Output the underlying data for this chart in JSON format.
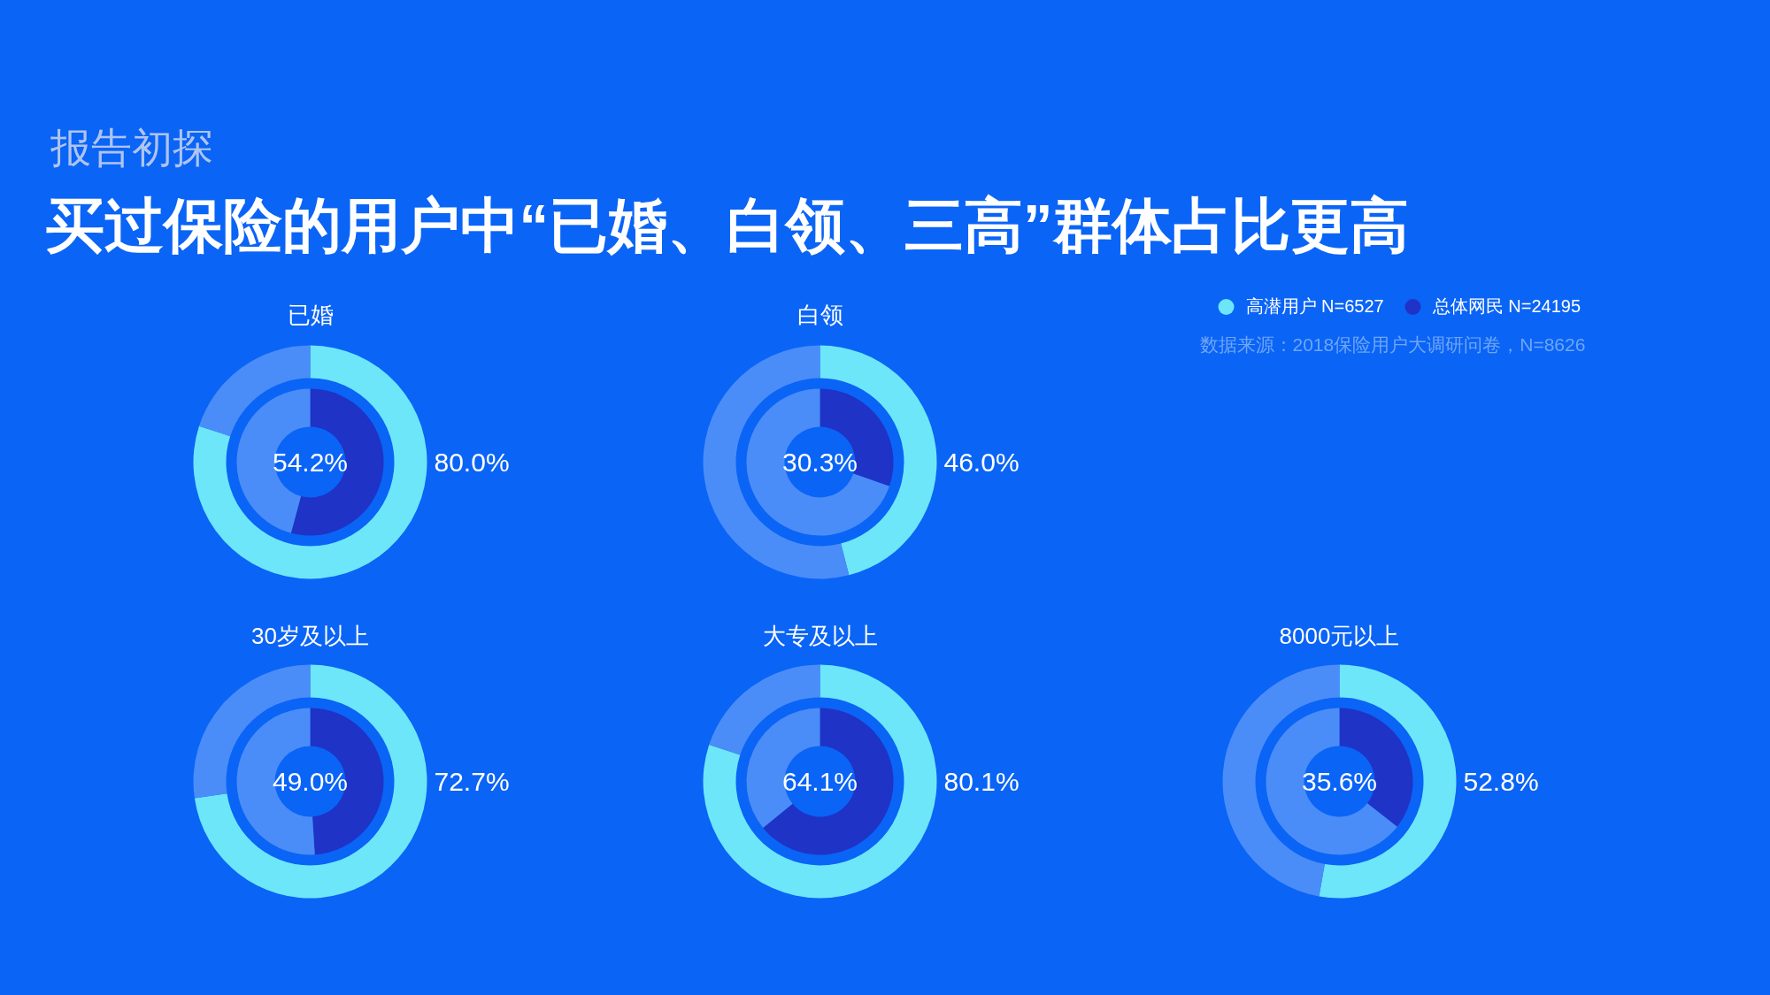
{
  "chart_data": [
    {
      "type": "other",
      "subtitle": "报告初探",
      "title": "买过保险的用户中“已婚、白领、三高”群体占比更高"
    },
    {
      "type": "donut",
      "title": "已婚",
      "categories": [
        null,
        null
      ],
      "series": [
        {
          "colors": [
            "#6ee6fa",
            "#4b8df8"
          ],
          "values": [
            80.0,
            20.0
          ],
          "value_labels": [
            "80.0%",
            null
          ]
        },
        {
          "colors": [
            "#1f33c6",
            "#4b8df8"
          ],
          "values": [
            54.2,
            45.8
          ],
          "value_labels": [
            "54.2%",
            null
          ]
        }
      ]
    },
    {
      "type": "donut",
      "title": "白领",
      "categories": [
        null,
        null
      ],
      "legend": "top right",
      "annotations": [
        "数据来源：2018保险用户大调研问卷，N=8626"
      ],
      "series": [
        {
          "name": "高潜用户 N=6527",
          "colors": [
            "#6ee6fa",
            "#4b8df8"
          ],
          "values": [
            46.0,
            54.0
          ],
          "value_labels": [
            "46.0%",
            null
          ]
        },
        {
          "name": "总体网民 N=24195",
          "colors": [
            "#1f33c6",
            "#4b8df8"
          ],
          "values": [
            30.3,
            69.7
          ],
          "value_labels": [
            "30.3%",
            null
          ]
        }
      ]
    },
    {
      "type": "donut",
      "title": "30岁及以上",
      "categories": [
        null,
        null
      ],
      "series": [
        {
          "colors": [
            "#6ee6fa",
            "#4b8df8"
          ],
          "values": [
            72.7,
            27.3
          ],
          "value_labels": [
            "72.7%",
            null
          ]
        },
        {
          "colors": [
            "#1f33c6",
            "#4b8df8"
          ],
          "values": [
            49.0,
            51.0
          ],
          "value_labels": [
            "49.0%",
            null
          ]
        }
      ]
    },
    {
      "type": "donut",
      "title": "大专及以上",
      "categories": [
        null,
        null
      ],
      "series": [
        {
          "colors": [
            "#6ee6fa",
            "#4b8df8"
          ],
          "values": [
            80.1,
            19.9
          ],
          "value_labels": [
            "80.1%",
            null
          ]
        },
        {
          "colors": [
            "#1f33c6",
            "#4b8df8"
          ],
          "values": [
            64.1,
            35.9
          ],
          "value_labels": [
            "64.1%",
            null
          ]
        }
      ]
    },
    {
      "type": "donut",
      "title": "8000元以上",
      "categories": [
        null,
        null
      ],
      "series": [
        {
          "colors": [
            "#6ee6fa",
            "#4b8df8"
          ],
          "values": [
            52.8,
            47.2
          ],
          "value_labels": [
            "52.8%",
            null
          ]
        },
        {
          "colors": [
            "#1f33c6",
            "#4b8df8"
          ],
          "values": [
            35.6,
            64.4
          ],
          "value_labels": [
            "35.6%",
            null
          ]
        }
      ]
    }
  ]
}
